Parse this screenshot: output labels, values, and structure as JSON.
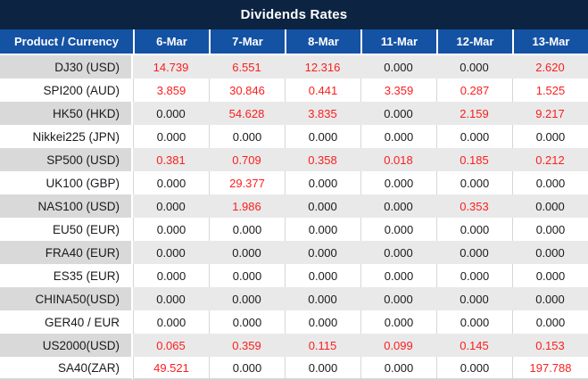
{
  "title": "Dividends Rates",
  "colors": {
    "title_bg": "#0d2342",
    "title_text": "#ffffff",
    "header_bg": "#1452a4",
    "header_text": "#ffffff",
    "row_gray_product": "#d9d9d9",
    "row_gray_value": "#e9e9e9",
    "grid_line": "#d6d6d6",
    "text_dark": "#1a1a1f",
    "value_red": "#fb1e1e"
  },
  "table": {
    "product_header": "Product / Currency",
    "date_columns": [
      "6-Mar",
      "7-Mar",
      "8-Mar",
      "11-Mar",
      "12-Mar",
      "13-Mar"
    ],
    "rows": [
      {
        "product": "DJ30 (USD)",
        "values": [
          "14.739",
          "6.551",
          "12.316",
          "0.000",
          "0.000",
          "2.620"
        ]
      },
      {
        "product": "SPI200 (AUD)",
        "values": [
          "3.859",
          "30.846",
          "0.441",
          "3.359",
          "0.287",
          "1.525"
        ]
      },
      {
        "product": "HK50 (HKD)",
        "values": [
          "0.000",
          "54.628",
          "3.835",
          "0.000",
          "2.159",
          "9.217"
        ]
      },
      {
        "product": "Nikkei225 (JPN)",
        "values": [
          "0.000",
          "0.000",
          "0.000",
          "0.000",
          "0.000",
          "0.000"
        ]
      },
      {
        "product": "SP500 (USD)",
        "values": [
          "0.381",
          "0.709",
          "0.358",
          "0.018",
          "0.185",
          "0.212"
        ]
      },
      {
        "product": "UK100 (GBP)",
        "values": [
          "0.000",
          "29.377",
          "0.000",
          "0.000",
          "0.000",
          "0.000"
        ]
      },
      {
        "product": "NAS100 (USD)",
        "values": [
          "0.000",
          "1.986",
          "0.000",
          "0.000",
          "0.353",
          "0.000"
        ]
      },
      {
        "product": "EU50 (EUR)",
        "values": [
          "0.000",
          "0.000",
          "0.000",
          "0.000",
          "0.000",
          "0.000"
        ]
      },
      {
        "product": "FRA40 (EUR)",
        "values": [
          "0.000",
          "0.000",
          "0.000",
          "0.000",
          "0.000",
          "0.000"
        ]
      },
      {
        "product": "ES35 (EUR)",
        "values": [
          "0.000",
          "0.000",
          "0.000",
          "0.000",
          "0.000",
          "0.000"
        ]
      },
      {
        "product": "CHINA50(USD)",
        "values": [
          "0.000",
          "0.000",
          "0.000",
          "0.000",
          "0.000",
          "0.000"
        ]
      },
      {
        "product": "GER40 / EUR",
        "values": [
          "0.000",
          "0.000",
          "0.000",
          "0.000",
          "0.000",
          "0.000"
        ]
      },
      {
        "product": "US2000(USD)",
        "values": [
          "0.065",
          "0.359",
          "0.115",
          "0.099",
          "0.145",
          "0.153"
        ]
      },
      {
        "product": "SA40(ZAR)",
        "values": [
          "49.521",
          "0.000",
          "0.000",
          "0.000",
          "0.000",
          "197.788"
        ]
      }
    ]
  }
}
